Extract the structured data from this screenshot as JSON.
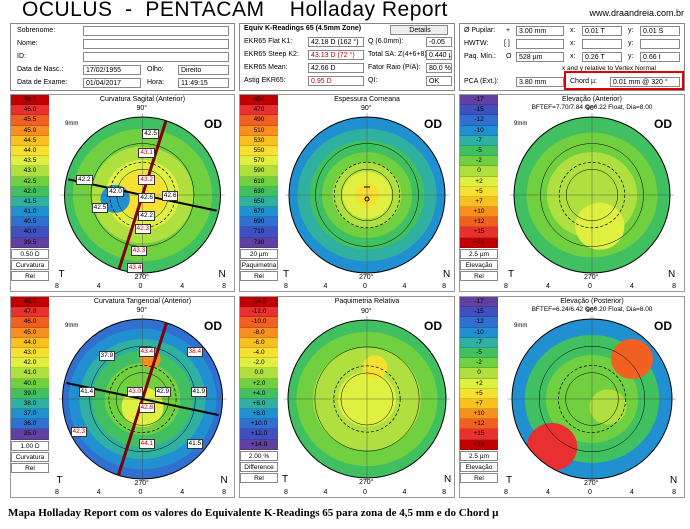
{
  "header": {
    "title": "OCULUS  -  PENTACAM    Holladay Report",
    "site": "www.draandreia.com.br"
  },
  "patient": {
    "labels": [
      "Sobrenome:",
      "Nome:",
      "ID:",
      "Data de Nasc.:",
      "Data de Exame:"
    ],
    "surname": "",
    "name": "",
    "id": "",
    "birth": "17/02/1955",
    "exam_date": "01/04/2017",
    "eye_label": "Olho:",
    "eye": "Direito",
    "time_label": "Hora:",
    "time": "11:49:15"
  },
  "kreadings": {
    "header": "Equiv K-Readings 65 (4.5mm Zone)",
    "details_button": "Details",
    "rows": [
      {
        "label": "EKR65 Flat K1:",
        "value": "42.18 D  (162 °)",
        "red": false
      },
      {
        "label": "EKR65 Steep K2:",
        "value": "43.13 D  (72 °)",
        "red": true
      },
      {
        "label": "EKR65 Mean:",
        "value": "42.66 D",
        "red": false
      },
      {
        "label": "Astig EKR65:",
        "value": "0.95 D",
        "red": true
      }
    ],
    "right_rows": [
      {
        "label": "Q (6.0mm):",
        "value": "-0.05"
      },
      {
        "label": "Total SA: Z(4+6+8):",
        "value": "0.440 µ"
      },
      {
        "label": "Fator Raio (P/A):",
        "value": "80.0 %"
      },
      {
        "label": "QI:",
        "value": "OK"
      }
    ]
  },
  "pupil": {
    "rows": [
      {
        "label": "Ø Pupilar:",
        "sign": "+",
        "v1": "3.00 mm",
        "x": "x:",
        "v2": "0.01 T",
        "y": "y:",
        "v3": "0.01 S"
      },
      {
        "label": "HWTW:",
        "sign": "[ ]",
        "v1": "",
        "x": "x:",
        "v2": "",
        "y": "y:",
        "v3": ""
      },
      {
        "label": "Paq. Mín.:",
        "sign": "O",
        "v1": "528 µm",
        "x": "x:",
        "v2": "0.26 T",
        "y": "y:",
        "v3": "0.66 I"
      }
    ],
    "note": "x and y relative to Vertex Normal",
    "pca_label": "PCA (Ext.):",
    "pca_value": "3.80 mm",
    "chord_label": "Chord µ:",
    "chord_value": "0.01 mm @ 320 °"
  },
  "maps": [
    {
      "title": "Curvatura Sagital (Anterior)",
      "sub": "",
      "od": "OD",
      "mm": "9mm",
      "scale": [
        "46.5",
        "46.0",
        "45.5",
        "45.0",
        "44.5",
        "44.0",
        "43.5",
        "43.0",
        "42.5",
        "42.0",
        "41.5",
        "41.0",
        "40.5",
        "40.0",
        "39.5"
      ],
      "step": "0.50 D",
      "btn1": "Curvatura",
      "btn2": "Rel",
      "colors": [
        "#c00000",
        "#e83030",
        "#f06020",
        "#f89020",
        "#f8c020",
        "#f8e030",
        "#e0f040",
        "#b0e040",
        "#70d040",
        "#40c060",
        "#30b0a0",
        "#2090d0",
        "#3070d0",
        "#4050c0",
        "#6040a0"
      ]
    },
    {
      "title": "Espessura Corneana",
      "sub": "",
      "od": "OD",
      "mm": "",
      "scale": [
        "450",
        "470",
        "490",
        "510",
        "530",
        "550",
        "570",
        "590",
        "610",
        "630",
        "650",
        "670",
        "690",
        "710",
        "730"
      ],
      "step": "20 µm",
      "btn1": "Paquimetria",
      "btn2": "Rel",
      "colors": [
        "#c00000",
        "#e83030",
        "#f06020",
        "#f89020",
        "#f8c020",
        "#f8e030",
        "#e0f040",
        "#b0e040",
        "#70d040",
        "#40c060",
        "#30b0a0",
        "#2090d0",
        "#3070d0",
        "#4050c0",
        "#6040a0"
      ]
    },
    {
      "title": "Elevação (Anterior)",
      "sub": "BFTEF=7.70/7.84 O=0.22 Float, Dia=8.00",
      "od": "OD",
      "mm": "9mm",
      "scale": [
        "-17",
        "-15",
        "-12",
        "-10",
        "-7",
        "-5",
        "-2",
        "0",
        "+2",
        "+5",
        "+7",
        "+10",
        "+12",
        "+15",
        "+18"
      ],
      "step": "2.5 µm",
      "btn1": "Elevação",
      "btn2": "Rel",
      "colors": [
        "#6040a0",
        "#4050c0",
        "#3070d0",
        "#2090d0",
        "#30b0a0",
        "#40c060",
        "#70d040",
        "#b0e040",
        "#e0f040",
        "#f8e030",
        "#f8c020",
        "#f89020",
        "#f06020",
        "#e83030",
        "#c00000"
      ]
    },
    {
      "title": "Curvatura Tangencial (Anterior)",
      "sub": "",
      "od": "OD",
      "mm": "9mm",
      "scale": [
        "48.0",
        "47.0",
        "46.0",
        "45.0",
        "44.0",
        "43.0",
        "42.0",
        "41.0",
        "40.0",
        "39.0",
        "38.0",
        "37.0",
        "36.0",
        "35.0"
      ],
      "step": "1.00 D",
      "btn1": "Curvatura",
      "btn2": "Rel",
      "colors": [
        "#c00000",
        "#e83030",
        "#f06020",
        "#f89020",
        "#f8c020",
        "#f8e030",
        "#e0f040",
        "#b0e040",
        "#70d040",
        "#40c060",
        "#30b0a0",
        "#2090d0",
        "#3070d0",
        "#6040a0"
      ]
    },
    {
      "title": "Paquimetria Relativa",
      "sub": "",
      "od": "OD",
      "mm": "",
      "scale": [
        "-14.0",
        "-12.0",
        "-10.0",
        "-8.0",
        "-6.0",
        "-4.0",
        "-2.0",
        "0.0",
        "+2.0",
        "+4.0",
        "+6.0",
        "+8.0",
        "+10.0",
        "+12.0",
        "+14.0"
      ],
      "step": "2.00 %",
      "btn1": "Difference",
      "btn2": "Rel",
      "colors": [
        "#c00000",
        "#e83030",
        "#f06020",
        "#f89020",
        "#f8c020",
        "#f8e030",
        "#e0f040",
        "#b0e040",
        "#70d040",
        "#40c060",
        "#30b0a0",
        "#2090d0",
        "#3070d0",
        "#4050c0",
        "#6040a0"
      ]
    },
    {
      "title": "Elevação (Posterior)",
      "sub": "BFTEF=6.24/6.42 O=0.20 Float, Dia=8.00",
      "od": "OD",
      "mm": "9mm",
      "scale": [
        "-17",
        "-15",
        "-12",
        "-10",
        "-7",
        "-5",
        "-2",
        "0",
        "+2",
        "+5",
        "+7",
        "+10",
        "+12",
        "+15",
        "+18"
      ],
      "step": "2.5 µm",
      "btn1": "Elevação",
      "btn2": "Rel",
      "colors": [
        "#6040a0",
        "#4050c0",
        "#3070d0",
        "#2090d0",
        "#30b0a0",
        "#40c060",
        "#70d040",
        "#b0e040",
        "#e0f040",
        "#f8e030",
        "#f8c020",
        "#f89020",
        "#f06020",
        "#e83030",
        "#c00000"
      ]
    }
  ],
  "axis": {
    "top": "90°",
    "bottom": "270°",
    "left": "180°",
    "t": "T",
    "n": "N",
    "ticks": [
      "8",
      "4",
      "0",
      "4",
      "8"
    ]
  },
  "sagittal_values": [
    {
      "v": "42.5",
      "red": false
    },
    {
      "v": "43.1",
      "red": true
    },
    {
      "v": "43.2",
      "red": true
    },
    {
      "v": "42.2",
      "red": false
    },
    {
      "v": "42.0",
      "red": false
    },
    {
      "v": "42.6",
      "red": false
    },
    {
      "v": "42.6",
      "red": false
    },
    {
      "v": "42.5",
      "red": false
    },
    {
      "v": "42.2",
      "red": false
    },
    {
      "v": "42.3",
      "red": true
    },
    {
      "v": "43.3",
      "red": true
    },
    {
      "v": "43.4",
      "red": true
    }
  ],
  "tangential_values": [
    {
      "v": "37.9",
      "red": false
    },
    {
      "v": "43.4",
      "red": true
    },
    {
      "v": "38.4",
      "red": true
    },
    {
      "v": "41.4",
      "red": false
    },
    {
      "v": "43.0",
      "red": true
    },
    {
      "v": "42.9",
      "red": false
    },
    {
      "v": "41.9",
      "red": false
    },
    {
      "v": "42.8",
      "red": true
    },
    {
      "v": "42.3",
      "red": true
    },
    {
      "v": "44.1",
      "red": true
    },
    {
      "v": "41.5",
      "red": false
    }
  ],
  "caption": "Mapa Holladay Report com os valores do Equivalente K-Readings 65 para zona de 4,5 mm e do Chord µ"
}
